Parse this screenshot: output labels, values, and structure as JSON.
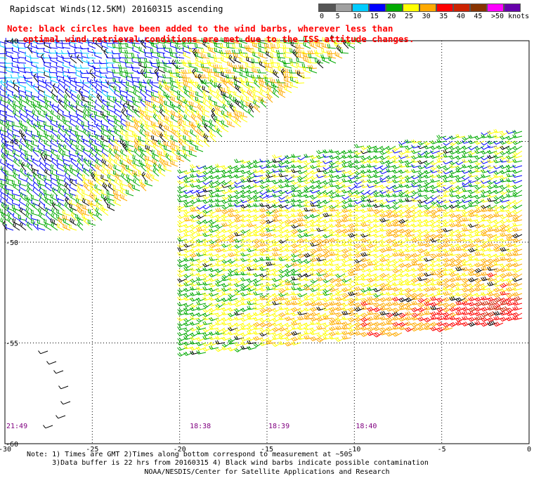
{
  "header": {
    "title": "Rapidscat Winds(12.5KM) 20160315 ascending",
    "note_line1": "Note: black circles have been added to the wind barbs, wherever less than",
    "note_line2": "   optimal wind retrieval conditions are met due to the ISS attitude changes."
  },
  "colorbar": {
    "unit": "knots",
    "labels": [
      "0",
      "5",
      "10",
      "15",
      "20",
      "25",
      "30",
      "35",
      "40",
      "45",
      ">50 knots"
    ],
    "colors": [
      "#555555",
      "#a0a0a0",
      "#00ccff",
      "#0000ff",
      "#00aa00",
      "#ffff00",
      "#ffaa00",
      "#ff0000",
      "#cc2200",
      "#883300",
      "#ff00ff",
      "#6600aa"
    ]
  },
  "map": {
    "lon_ticks": [
      "-30",
      "-25",
      "-20",
      "-15",
      "-10",
      "-5",
      "0"
    ],
    "lat_ticks": [
      "-40",
      "-45",
      "-50",
      "-55",
      "-60"
    ],
    "lon_range": [
      -30,
      0
    ],
    "lat_range": [
      -60,
      -40
    ],
    "grid": true,
    "times": [
      {
        "label": "21:49",
        "lon": -30
      },
      {
        "label": "18:38",
        "lon": -19.5
      },
      {
        "label": "18:39",
        "lon": -15
      },
      {
        "label": "18:40",
        "lon": -10
      }
    ]
  },
  "footer": {
    "note1": "Note: 1) Times are GMT 2)Times along bottom correspond to measurement at ~50S",
    "note2": "      3)Data buffer is 22 hrs from 20160315 4) Black wind barbs indicate possible contamination",
    "credit": "NOAA/NESDIS/Center for Satellite Applications and Research"
  }
}
